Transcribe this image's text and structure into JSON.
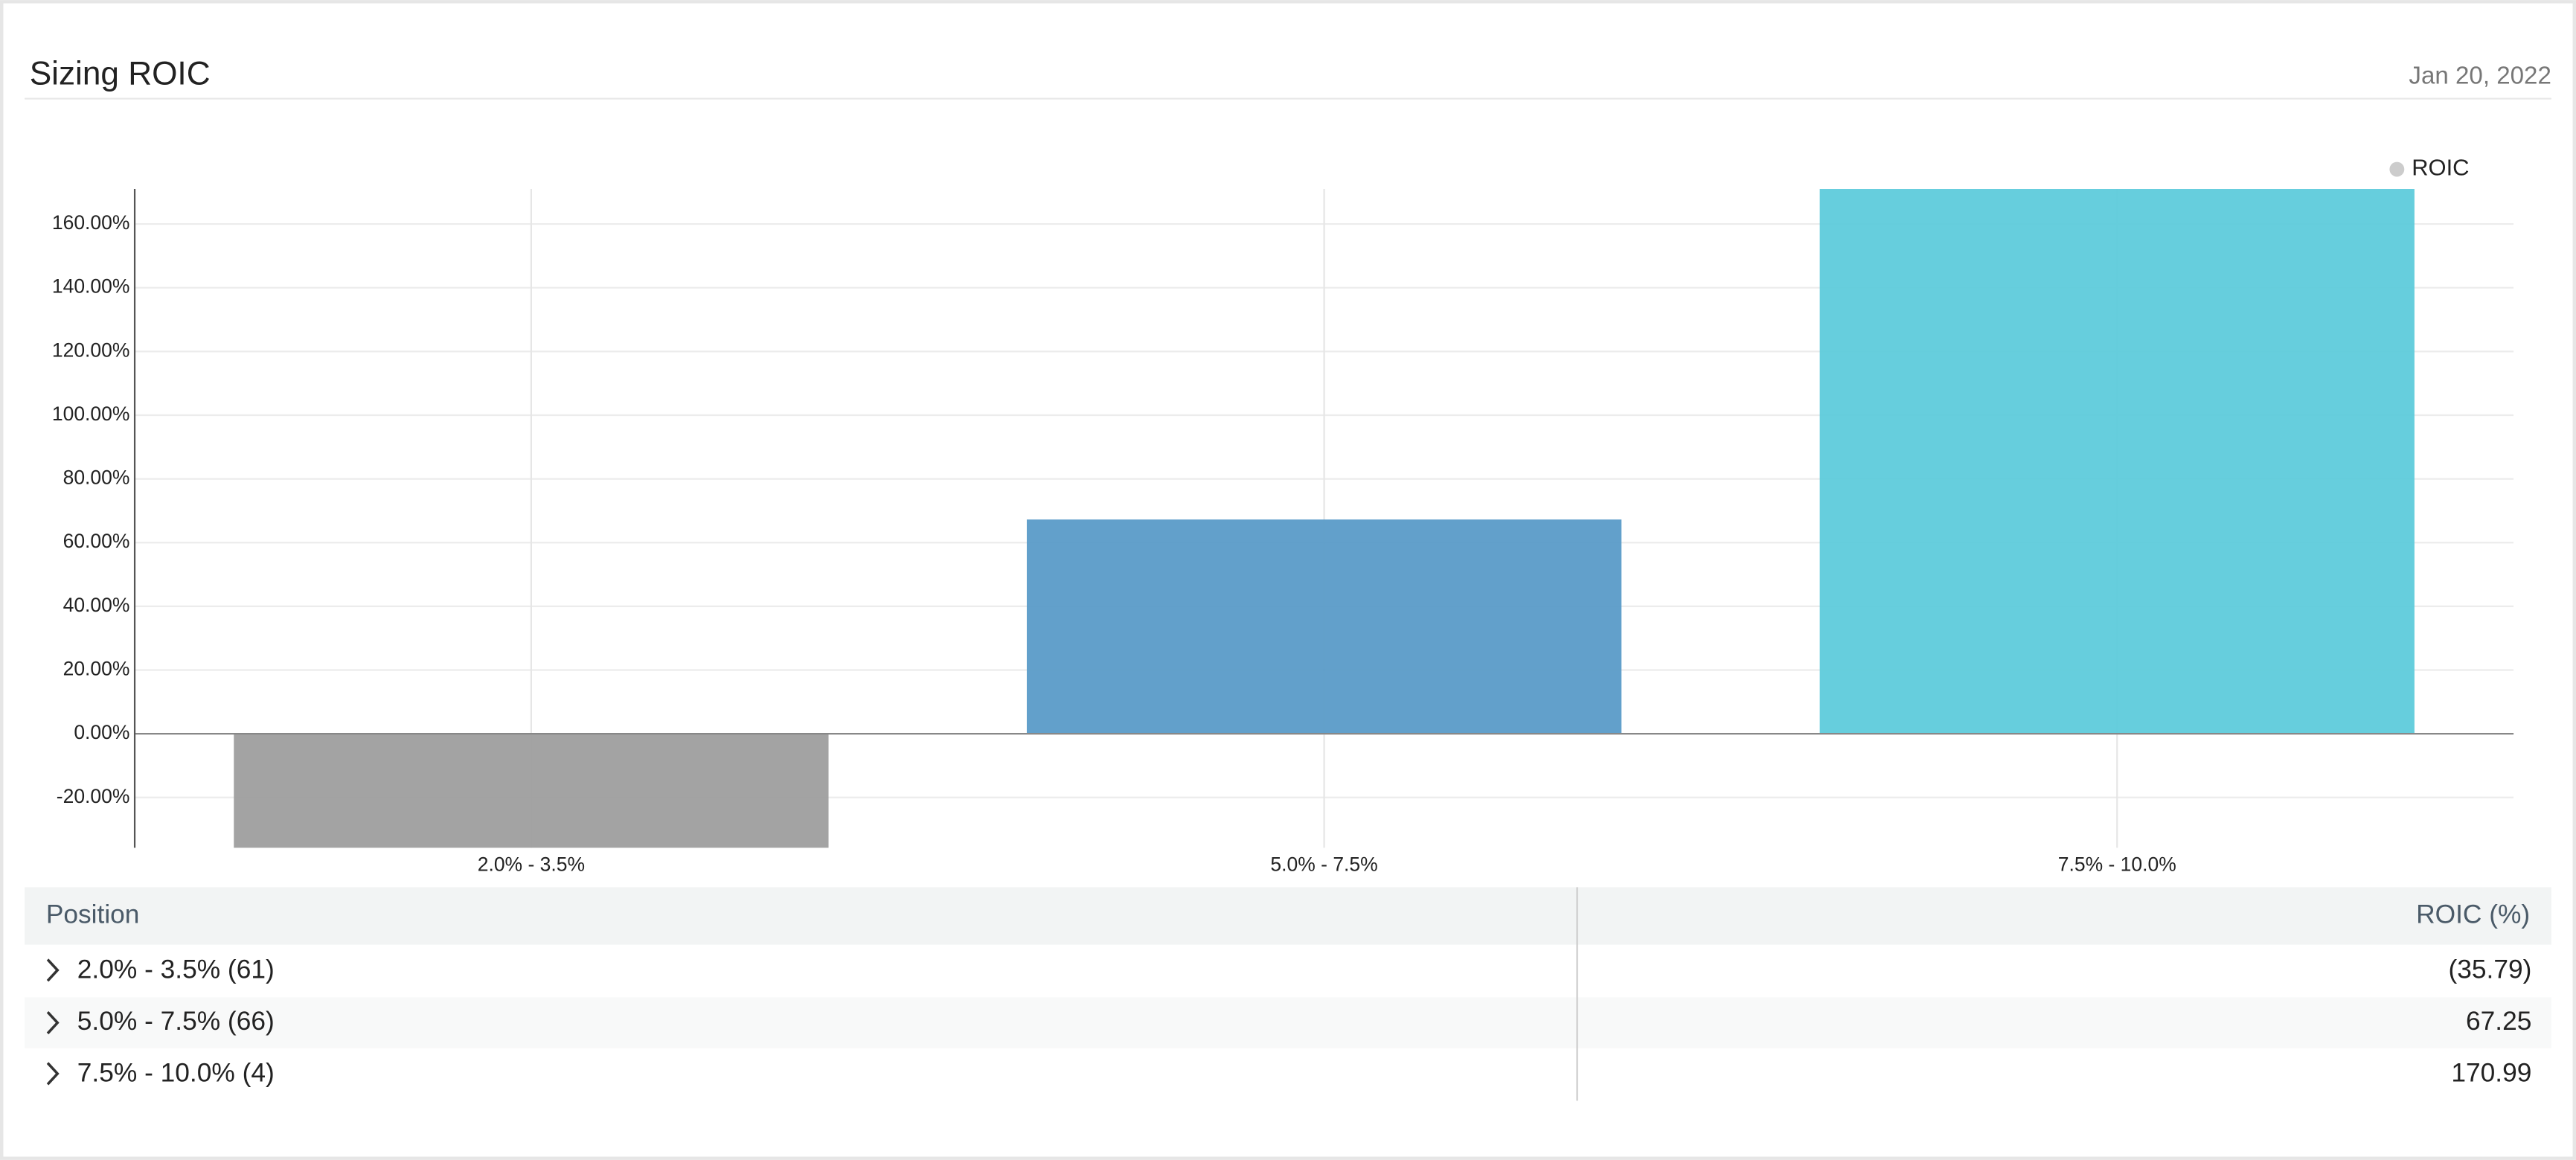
{
  "header": {
    "title": "Sizing ROIC",
    "date": "Jan 20, 2022"
  },
  "chart_data": {
    "type": "bar",
    "categories": [
      "2.0% - 3.5%",
      "5.0% - 7.5%",
      "7.5% - 10.0%"
    ],
    "series": [
      {
        "name": "ROIC",
        "color": "#cccccc",
        "values": [
          -35.79,
          67.25,
          170.99
        ],
        "colors": [
          "#9e9e9e",
          "#5a9bc8",
          "#5ecbdb"
        ]
      }
    ],
    "ylim": [
      -35.79,
      170.99
    ],
    "yticks": [
      {
        "value": -20,
        "label": "-20.00%"
      },
      {
        "value": 0,
        "label": "0.00%"
      },
      {
        "value": 20,
        "label": "20.00%"
      },
      {
        "value": 40,
        "label": "40.00%"
      },
      {
        "value": 60,
        "label": "60.00%"
      },
      {
        "value": 80,
        "label": "80.00%"
      },
      {
        "value": 100,
        "label": "100.00%"
      },
      {
        "value": 120,
        "label": "120.00%"
      },
      {
        "value": 140,
        "label": "140.00%"
      },
      {
        "value": 160,
        "label": "160.00%"
      }
    ],
    "grid": true,
    "legend": "top-right"
  },
  "table": {
    "columns": [
      "Position",
      "ROIC (%)"
    ],
    "rows": [
      [
        "2.0% - 3.5% (61)",
        "(35.79)"
      ],
      [
        "5.0% - 7.5% (66)",
        "67.25"
      ],
      [
        "7.5% - 10.0% (4)",
        "170.99"
      ]
    ]
  }
}
